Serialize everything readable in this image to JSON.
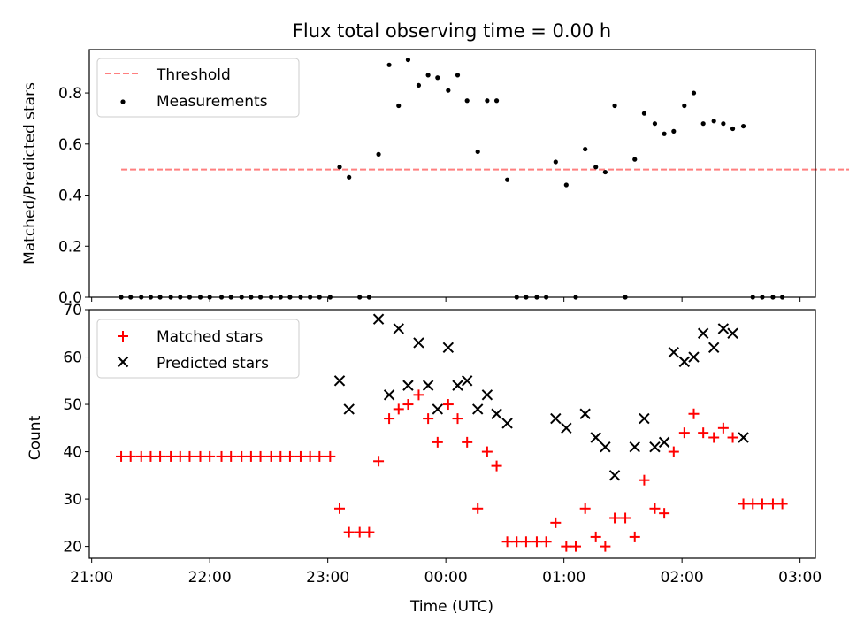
{
  "title": "Flux total observing time = 0.00 h",
  "chart_data": [
    {
      "type": "scatter",
      "ylabel": "Matched/Predicted stars",
      "ylim": [
        0,
        0.97
      ],
      "yticks": [
        "0.0",
        "0.2",
        "0.4",
        "0.6",
        "0.8"
      ],
      "ytick_values": [
        0,
        0.2,
        0.4,
        0.6,
        0.8
      ],
      "legend_position": "upper-left",
      "threshold": {
        "name": "Threshold",
        "y": 0.5,
        "x_start": 21.25,
        "x_end": 28.85,
        "color": "#ff7f7f"
      },
      "series": [
        {
          "name": "Measurements",
          "color": "#000000",
          "marker": "dot",
          "points": [
            [
              21.25,
              0
            ],
            [
              21.33,
              0
            ],
            [
              21.42,
              0
            ],
            [
              21.5,
              0
            ],
            [
              21.58,
              0
            ],
            [
              21.67,
              0
            ],
            [
              21.75,
              0
            ],
            [
              21.83,
              0
            ],
            [
              21.92,
              0
            ],
            [
              22.0,
              0
            ],
            [
              22.1,
              0
            ],
            [
              22.18,
              0
            ],
            [
              22.27,
              0
            ],
            [
              22.35,
              0
            ],
            [
              22.43,
              0
            ],
            [
              22.52,
              0
            ],
            [
              22.6,
              0
            ],
            [
              22.68,
              0
            ],
            [
              22.77,
              0
            ],
            [
              22.85,
              0
            ],
            [
              22.93,
              0
            ],
            [
              23.02,
              0
            ],
            [
              23.1,
              0.51
            ],
            [
              23.18,
              0.47
            ],
            [
              23.27,
              0
            ],
            [
              23.35,
              0
            ],
            [
              23.43,
              0.56
            ],
            [
              23.52,
              0.91
            ],
            [
              23.6,
              0.75
            ],
            [
              23.68,
              0.93
            ],
            [
              23.77,
              0.83
            ],
            [
              23.85,
              0.87
            ],
            [
              23.93,
              0.86
            ],
            [
              24.02,
              0.81
            ],
            [
              24.1,
              0.87
            ],
            [
              24.18,
              0.77
            ],
            [
              24.27,
              0.57
            ],
            [
              24.35,
              0.77
            ],
            [
              24.43,
              0.77
            ],
            [
              24.52,
              0.46
            ],
            [
              24.6,
              0
            ],
            [
              24.68,
              0
            ],
            [
              24.77,
              0
            ],
            [
              24.85,
              0
            ],
            [
              24.93,
              0.53
            ],
            [
              25.02,
              0.44
            ],
            [
              25.1,
              0
            ],
            [
              25.18,
              0.58
            ],
            [
              25.27,
              0.51
            ],
            [
              25.35,
              0.49
            ],
            [
              25.43,
              0.75
            ],
            [
              25.52,
              0
            ],
            [
              25.6,
              0.54
            ],
            [
              25.68,
              0.72
            ],
            [
              25.77,
              0.68
            ],
            [
              25.85,
              0.64
            ],
            [
              25.93,
              0.65
            ],
            [
              26.02,
              0.75
            ],
            [
              26.1,
              0.8
            ],
            [
              26.18,
              0.68
            ],
            [
              26.27,
              0.69
            ],
            [
              26.35,
              0.68
            ],
            [
              26.43,
              0.66
            ],
            [
              26.52,
              0.67
            ],
            [
              26.6,
              0
            ],
            [
              26.68,
              0
            ],
            [
              26.77,
              0
            ],
            [
              26.85,
              0
            ]
          ]
        }
      ]
    },
    {
      "type": "scatter",
      "xlabel": "Time (UTC)",
      "ylabel": "Count",
      "ylim": [
        17.5,
        70
      ],
      "yticks": [
        "20",
        "30",
        "40",
        "50",
        "60",
        "70"
      ],
      "ytick_values": [
        20,
        30,
        40,
        50,
        60,
        70
      ],
      "xlim": [
        20.98,
        27.13
      ],
      "xticks": [
        "21:00",
        "22:00",
        "23:00",
        "00:00",
        "01:00",
        "02:00",
        "03:00"
      ],
      "xtick_values": [
        21,
        22,
        23,
        24,
        25,
        26,
        27
      ],
      "legend_position": "upper-left",
      "series": [
        {
          "name": "Matched stars",
          "color": "#ff0000",
          "marker": "plus",
          "points": [
            [
              21.25,
              39
            ],
            [
              21.33,
              39
            ],
            [
              21.42,
              39
            ],
            [
              21.5,
              39
            ],
            [
              21.58,
              39
            ],
            [
              21.67,
              39
            ],
            [
              21.75,
              39
            ],
            [
              21.83,
              39
            ],
            [
              21.92,
              39
            ],
            [
              22.0,
              39
            ],
            [
              22.1,
              39
            ],
            [
              22.18,
              39
            ],
            [
              22.27,
              39
            ],
            [
              22.35,
              39
            ],
            [
              22.43,
              39
            ],
            [
              22.52,
              39
            ],
            [
              22.6,
              39
            ],
            [
              22.68,
              39
            ],
            [
              22.77,
              39
            ],
            [
              22.85,
              39
            ],
            [
              22.93,
              39
            ],
            [
              23.02,
              39
            ],
            [
              23.1,
              28
            ],
            [
              23.18,
              23
            ],
            [
              23.27,
              23
            ],
            [
              23.35,
              23
            ],
            [
              23.43,
              38
            ],
            [
              23.52,
              47
            ],
            [
              23.6,
              49
            ],
            [
              23.68,
              50
            ],
            [
              23.77,
              52
            ],
            [
              23.85,
              47
            ],
            [
              23.93,
              42
            ],
            [
              24.02,
              50
            ],
            [
              24.1,
              47
            ],
            [
              24.18,
              42
            ],
            [
              24.27,
              28
            ],
            [
              24.35,
              40
            ],
            [
              24.43,
              37
            ],
            [
              24.52,
              21
            ],
            [
              24.6,
              21
            ],
            [
              24.68,
              21
            ],
            [
              24.77,
              21
            ],
            [
              24.85,
              21
            ],
            [
              24.93,
              25
            ],
            [
              25.02,
              20
            ],
            [
              25.1,
              20
            ],
            [
              25.18,
              28
            ],
            [
              25.27,
              22
            ],
            [
              25.35,
              20
            ],
            [
              25.43,
              26
            ],
            [
              25.52,
              26
            ],
            [
              25.6,
              22
            ],
            [
              25.68,
              34
            ],
            [
              25.77,
              28
            ],
            [
              25.85,
              27
            ],
            [
              25.93,
              40
            ],
            [
              26.02,
              44
            ],
            [
              26.1,
              48
            ],
            [
              26.18,
              44
            ],
            [
              26.27,
              43
            ],
            [
              26.35,
              45
            ],
            [
              26.43,
              43
            ],
            [
              26.52,
              29
            ],
            [
              26.6,
              29
            ],
            [
              26.68,
              29
            ],
            [
              26.77,
              29
            ],
            [
              26.85,
              29
            ]
          ]
        },
        {
          "name": "Predicted stars",
          "color": "#000000",
          "marker": "x",
          "points": [
            [
              23.1,
              55
            ],
            [
              23.18,
              49
            ],
            [
              23.43,
              68
            ],
            [
              23.52,
              52
            ],
            [
              23.6,
              66
            ],
            [
              23.68,
              54
            ],
            [
              23.77,
              63
            ],
            [
              23.85,
              54
            ],
            [
              23.93,
              49
            ],
            [
              24.02,
              62
            ],
            [
              24.1,
              54
            ],
            [
              24.18,
              55
            ],
            [
              24.27,
              49
            ],
            [
              24.35,
              52
            ],
            [
              24.43,
              48
            ],
            [
              24.52,
              46
            ],
            [
              24.93,
              47
            ],
            [
              25.02,
              45
            ],
            [
              25.18,
              48
            ],
            [
              25.27,
              43
            ],
            [
              25.35,
              41
            ],
            [
              25.43,
              35
            ],
            [
              25.6,
              41
            ],
            [
              25.68,
              47
            ],
            [
              25.77,
              41
            ],
            [
              25.85,
              42
            ],
            [
              25.93,
              61
            ],
            [
              26.02,
              59
            ],
            [
              26.1,
              60
            ],
            [
              26.18,
              65
            ],
            [
              26.27,
              62
            ],
            [
              26.35,
              66
            ],
            [
              26.43,
              65
            ],
            [
              26.52,
              43
            ]
          ]
        }
      ]
    }
  ]
}
